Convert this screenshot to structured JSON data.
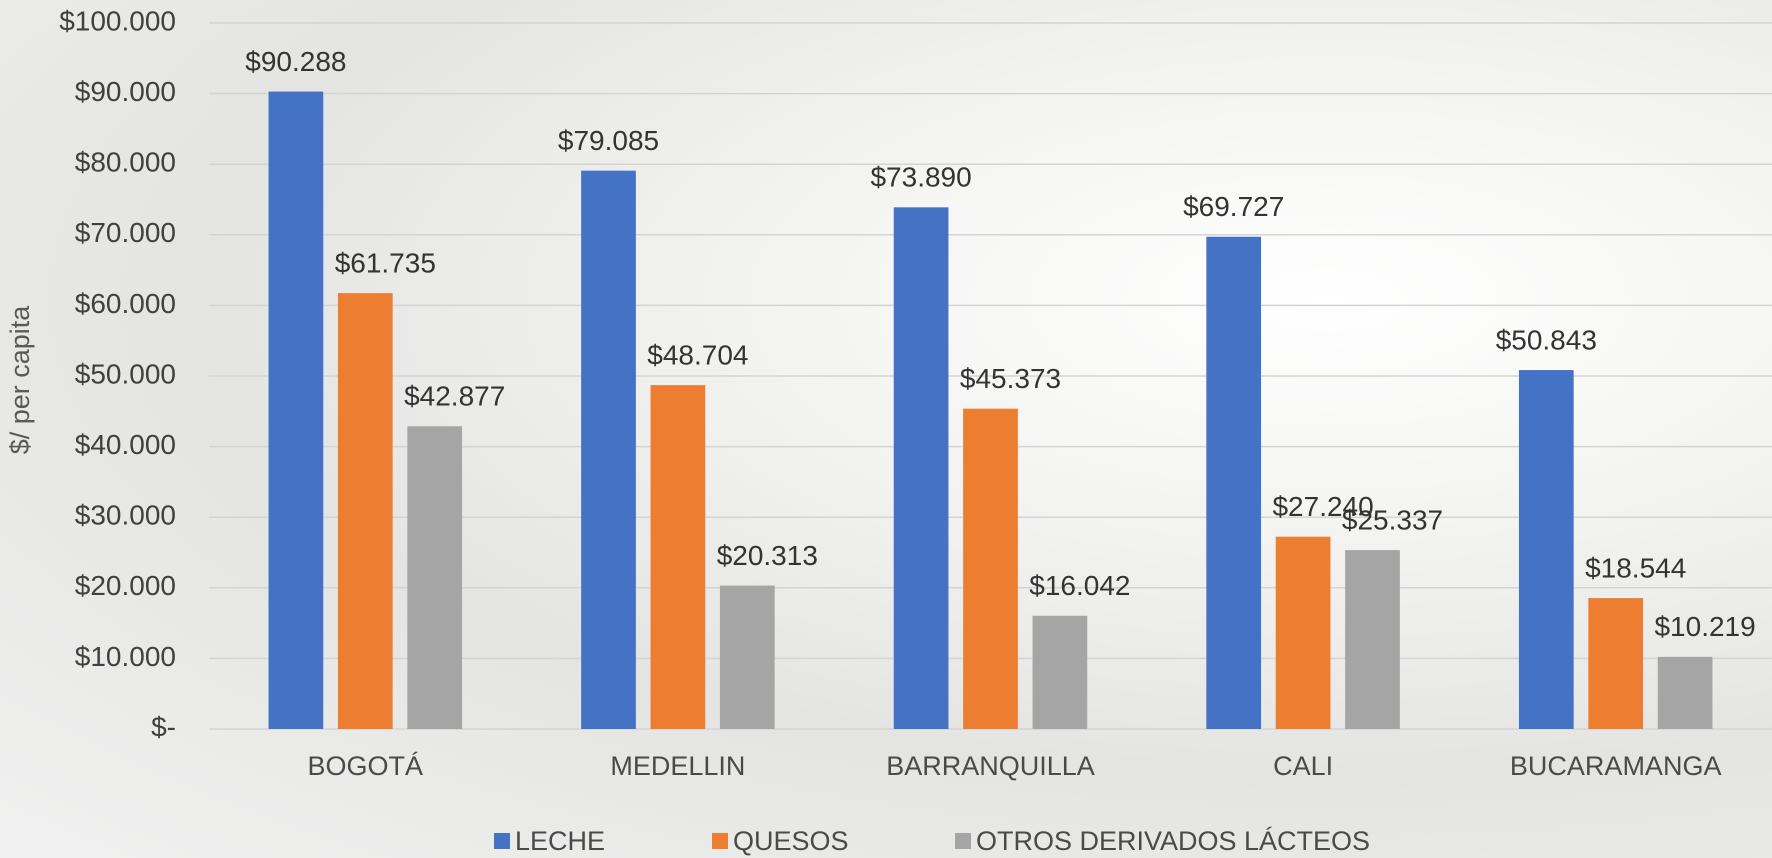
{
  "chart_data": {
    "type": "bar",
    "y_label": "$/ per capita",
    "categories": [
      "BOGOTÁ",
      "MEDELLIN",
      "BARRANQUILLA",
      "CALI",
      "BUCARAMANGA"
    ],
    "series": [
      {
        "name": "LECHE",
        "color": "#4472c4",
        "values": [
          90288,
          79085,
          73890,
          69727,
          50843
        ],
        "value_labels": [
          "$90.288",
          "$79.085",
          "$73.890",
          "$69.727",
          "$50.843"
        ]
      },
      {
        "name": "QUESOS",
        "color": "#ed7d31",
        "values": [
          61735,
          48704,
          45373,
          27240,
          18544
        ],
        "value_labels": [
          "$61.735",
          "$48.704",
          "$45.373",
          "$27.240",
          "$18.544"
        ]
      },
      {
        "name": "OTROS DERIVADOS LÁCTEOS",
        "color": "#a5a5a5",
        "values": [
          42877,
          20313,
          16042,
          25337,
          10219
        ],
        "value_labels": [
          "$42.877",
          "$20.313",
          "$16.042",
          "$25.337",
          "$10.219"
        ]
      }
    ],
    "ylim": [
      0,
      100000
    ],
    "yticks": [
      {
        "value": 0,
        "label": "$-"
      },
      {
        "value": 10000,
        "label": "$10.000"
      },
      {
        "value": 20000,
        "label": "$20.000"
      },
      {
        "value": 30000,
        "label": "$30.000"
      },
      {
        "value": 40000,
        "label": "$40.000"
      },
      {
        "value": 50000,
        "label": "$50.000"
      },
      {
        "value": 60000,
        "label": "$60.000"
      },
      {
        "value": 70000,
        "label": "$70.000"
      },
      {
        "value": 80000,
        "label": "$80.000"
      },
      {
        "value": 90000,
        "label": "$90.000"
      },
      {
        "value": 100000,
        "label": "$100.000"
      }
    ],
    "grid": true,
    "legend": "bottom"
  }
}
